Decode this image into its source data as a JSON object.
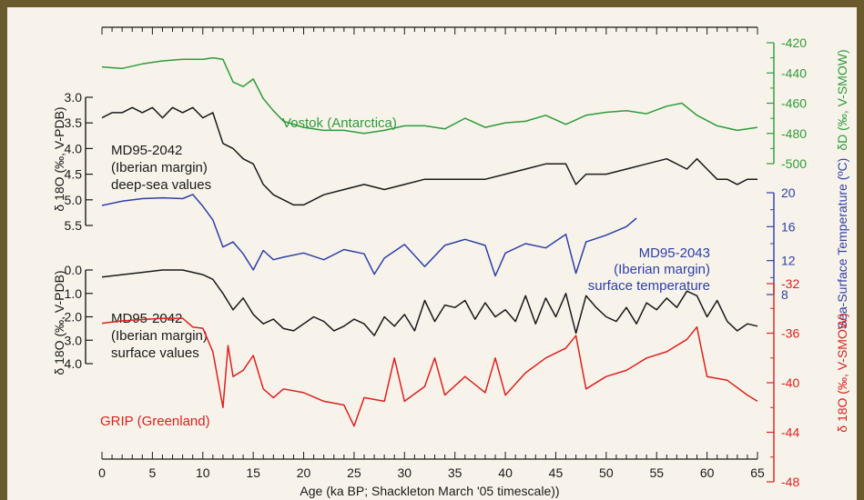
{
  "chart_data": {
    "type": "line",
    "xlabel": "Age (ka BP; Shackleton March '05 timescale))",
    "x_ticks": [
      0,
      5,
      10,
      15,
      20,
      25,
      30,
      35,
      40,
      45,
      50,
      55,
      60,
      65
    ],
    "xlim": [
      0,
      65
    ],
    "series": [
      {
        "name": "Vostok (Antarctica)",
        "color": "#2e9b3a",
        "axis_side": "right",
        "ylabel": "δD (‰, V-SMOW)",
        "ylim": [
          -420,
          -500
        ],
        "ticks": [
          -420,
          -440,
          -460,
          -480,
          -500
        ],
        "tick_labels": [
          "-420",
          "-440",
          "-460",
          "-480",
          "-500"
        ],
        "x": [
          0,
          2,
          4,
          6,
          8,
          10,
          11,
          12,
          13,
          14,
          15,
          16,
          17,
          18,
          20,
          22,
          24,
          26,
          28,
          30,
          32,
          34,
          36,
          38,
          40,
          42,
          44,
          46,
          48,
          50,
          52,
          54,
          56,
          57.5,
          59,
          61,
          63,
          65
        ],
        "values": [
          -436,
          -437,
          -434,
          -432,
          -431,
          -431,
          -430,
          -431,
          -446,
          -449,
          -444,
          -457,
          -465,
          -472,
          -476,
          -478,
          -478,
          -480,
          -478,
          -475,
          -475,
          -477,
          -470,
          -476,
          -473,
          -472,
          -468,
          -474,
          -468,
          -466,
          -465,
          -467,
          -462,
          -460,
          -468,
          -475,
          -478,
          -476
        ]
      },
      {
        "name": "MD95-2042 (Iberian margin) deep-sea values",
        "color": "#1a1a1a",
        "axis_side": "left",
        "ylabel": "δ 18O (‰, V-PDB)",
        "ylim": [
          3.0,
          5.5
        ],
        "ticks": [
          3.0,
          3.5,
          4.0,
          4.5,
          5.0,
          5.5
        ],
        "tick_labels": [
          "3.0",
          "3.5",
          "4.0",
          "4.5",
          "5.0",
          "5.5"
        ],
        "x": [
          0,
          1,
          2,
          3,
          4,
          5,
          6,
          7,
          8,
          9,
          10,
          11,
          12,
          13,
          14,
          15,
          16,
          17,
          18,
          19,
          20,
          21,
          22,
          24,
          26,
          28,
          30,
          32,
          34,
          36,
          38,
          40,
          42,
          44,
          46,
          47,
          48,
          50,
          52,
          54,
          56,
          58,
          59,
          60,
          61,
          62,
          63,
          64,
          65
        ],
        "values": [
          3.4,
          3.3,
          3.3,
          3.2,
          3.3,
          3.2,
          3.4,
          3.2,
          3.3,
          3.2,
          3.4,
          3.3,
          3.9,
          4.0,
          4.2,
          4.3,
          4.7,
          4.9,
          5.0,
          5.1,
          5.1,
          5.0,
          4.9,
          4.8,
          4.7,
          4.8,
          4.7,
          4.6,
          4.6,
          4.6,
          4.6,
          4.5,
          4.4,
          4.3,
          4.3,
          4.7,
          4.5,
          4.5,
          4.4,
          4.3,
          4.2,
          4.4,
          4.2,
          4.4,
          4.6,
          4.6,
          4.7,
          4.6,
          4.6
        ]
      },
      {
        "name": "MD95-2043 (Iberian margin) surface temperature",
        "color": "#2e3fa8",
        "axis_side": "right",
        "ylabel": "Sea-Surface Temperature (ºC)",
        "ylim": [
          20,
          8
        ],
        "ticks": [
          20,
          16,
          12,
          8
        ],
        "tick_labels": [
          "20",
          "16",
          "12",
          "8"
        ],
        "x": [
          0,
          2,
          4,
          6,
          8,
          9,
          10,
          11,
          12,
          13,
          14,
          15,
          16,
          17,
          18,
          20,
          22,
          24,
          26,
          27,
          28,
          30,
          32,
          34,
          36,
          38,
          39,
          40,
          42,
          44,
          46,
          47,
          48,
          50,
          52,
          53
        ],
        "values": [
          18.5,
          19.0,
          19.3,
          19.4,
          19.3,
          19.8,
          18.4,
          16.8,
          13.6,
          14.2,
          12.8,
          10.9,
          13.2,
          12.1,
          12.4,
          12.9,
          12.1,
          13.3,
          12.8,
          10.4,
          12.3,
          13.9,
          11.3,
          13.8,
          14.5,
          13.8,
          10.2,
          12.9,
          14.0,
          13.5,
          15.1,
          10.5,
          14.2,
          15.0,
          16.0,
          17.0
        ]
      },
      {
        "name": "MD95-2042 (Iberian margin) surface values",
        "color": "#1a1a1a",
        "axis_side": "left",
        "ylabel": "δ 18O (‰, V-PDB)",
        "ylim": [
          0.0,
          4.0
        ],
        "ticks": [
          0.0,
          1.0,
          2.0,
          3.0,
          4.0
        ],
        "tick_labels": [
          "0.0",
          "1.0",
          "2.0",
          "3.0",
          "4.0"
        ],
        "x": [
          0,
          2,
          4,
          6,
          8,
          10,
          11,
          12,
          13,
          14,
          15,
          16,
          17,
          18,
          19,
          20,
          21,
          22,
          23,
          24,
          25,
          26,
          27,
          28,
          29,
          30,
          31,
          32,
          33,
          34,
          35,
          36,
          37,
          38,
          39,
          40,
          41,
          42,
          43,
          44,
          45,
          46,
          47,
          48,
          49,
          50,
          51,
          52,
          53,
          54,
          55,
          56,
          57,
          58,
          59,
          60,
          61,
          62,
          63,
          64,
          65
        ],
        "values": [
          0.3,
          0.2,
          0.1,
          0.0,
          0.0,
          0.2,
          0.4,
          1.0,
          1.7,
          1.2,
          1.9,
          2.3,
          2.1,
          2.5,
          2.6,
          2.3,
          2.0,
          2.2,
          2.6,
          2.4,
          2.1,
          2.3,
          2.8,
          2.0,
          2.4,
          1.9,
          2.6,
          1.3,
          2.2,
          1.5,
          1.6,
          1.3,
          2.1,
          1.4,
          2.0,
          1.7,
          2.2,
          1.1,
          2.3,
          1.2,
          2.0,
          1.0,
          2.7,
          1.1,
          1.6,
          2.0,
          2.2,
          1.6,
          2.3,
          1.4,
          1.7,
          1.2,
          1.6,
          0.9,
          1.1,
          2.0,
          1.3,
          2.2,
          2.6,
          2.3,
          2.4
        ]
      },
      {
        "name": "GRIP (Greenland)",
        "color": "#e02020",
        "axis_side": "right",
        "ylabel": "δ 18O (‰, V-SMOW)",
        "ylim": [
          -32,
          -48
        ],
        "ticks": [
          -32,
          -36,
          -40,
          -44,
          -48
        ],
        "tick_labels": [
          "-32",
          "-36",
          "-40",
          "-44",
          "-48"
        ],
        "x": [
          0,
          2,
          4,
          6,
          8,
          9,
          10,
          11,
          12,
          12.5,
          13,
          14,
          15,
          16,
          17,
          18,
          20,
          22,
          24,
          25,
          26,
          28,
          29,
          30,
          32,
          33,
          34,
          36,
          38,
          39,
          40,
          42,
          44,
          46,
          47,
          48,
          50,
          52,
          53,
          54,
          56,
          58,
          59,
          60,
          62,
          64,
          65
        ],
        "values": [
          -35.2,
          -35.0,
          -34.9,
          -34.8,
          -34.8,
          -35.5,
          -35.6,
          -37.5,
          -42.0,
          -37.0,
          -39.5,
          -39.0,
          -37.8,
          -40.5,
          -41.2,
          -40.5,
          -40.8,
          -41.5,
          -41.8,
          -43.5,
          -41.2,
          -41.5,
          -38.0,
          -41.5,
          -40.3,
          -38.0,
          -41.0,
          -39.5,
          -40.8,
          -38.0,
          -41.0,
          -39.2,
          -38.0,
          -37.2,
          -36.2,
          -40.5,
          -39.5,
          -39.0,
          -38.5,
          -38.0,
          -37.5,
          -36.5,
          -35.5,
          -39.5,
          -39.8,
          -41.0,
          -41.5
        ]
      }
    ],
    "annotations": [
      {
        "text": "Vostok (Antarctica)",
        "color": "#2e9b3a"
      },
      {
        "lines": [
          "MD95-2042",
          "(Iberian margin)",
          "deep-sea values"
        ],
        "color": "#1a1a1a"
      },
      {
        "lines": [
          "MD95-2043",
          "(Iberian margin)",
          "surface temperature"
        ],
        "color": "#2e3fa8"
      },
      {
        "lines": [
          "MD95-2042",
          "(Iberian margin)",
          "surface values"
        ],
        "color": "#1a1a1a"
      },
      {
        "text": "GRIP (Greenland)",
        "color": "#e02020"
      }
    ]
  }
}
